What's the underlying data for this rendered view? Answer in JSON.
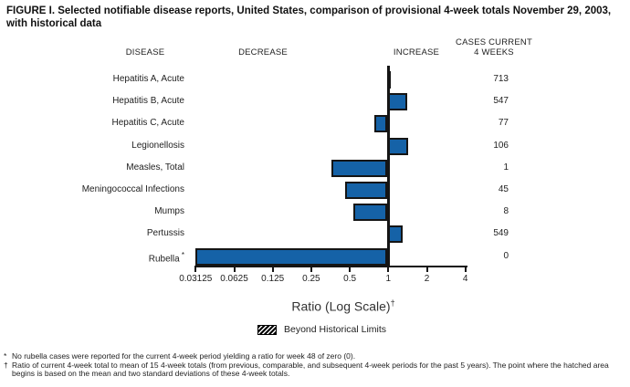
{
  "title": "FIGURE I. Selected notifiable disease reports, United States, comparison of provisional 4-week totals November 29, 2003, with historical data",
  "columns": {
    "disease": "DISEASE",
    "decrease": "DECREASE",
    "increase": "INCREASE",
    "cases_line1": "CASES CURRENT",
    "cases_line2": "4 WEEKS"
  },
  "chart_data": {
    "type": "bar",
    "orientation": "horizontal",
    "scale": "log2",
    "title": "FIGURE I. Selected notifiable disease reports, United States, comparison of provisional 4-week totals November 29, 2003, with historical data",
    "xlabel": "Ratio (Log Scale)",
    "xlabel_superscript": "†",
    "axis_ticks": [
      "0.03125",
      "0.0625",
      "0.125",
      "0.25",
      "0.5",
      "1",
      "2",
      "4"
    ],
    "axis_range": [
      0.03125,
      4
    ],
    "baseline_ratio": 1,
    "bar_color": "#1562a7",
    "rows": [
      {
        "disease": "Hepatitis A, Acute",
        "ratio": 1.05,
        "cases": "713",
        "beyond_limits": false
      },
      {
        "disease": "Hepatitis B, Acute",
        "ratio": 1.41,
        "cases": "547",
        "beyond_limits": false
      },
      {
        "disease": "Hepatitis C, Acute",
        "ratio": 0.78,
        "cases": "77",
        "beyond_limits": false
      },
      {
        "disease": "Legionellosis",
        "ratio": 1.44,
        "cases": "106",
        "beyond_limits": false
      },
      {
        "disease": "Measles, Total",
        "ratio": 0.36,
        "cases": "1",
        "beyond_limits": false
      },
      {
        "disease": "Meningococcal Infections",
        "ratio": 0.46,
        "cases": "45",
        "beyond_limits": false
      },
      {
        "disease": "Mumps",
        "ratio": 0.53,
        "cases": "8",
        "beyond_limits": false
      },
      {
        "disease": "Pertussis",
        "ratio": 1.29,
        "cases": "549",
        "beyond_limits": false
      },
      {
        "disease": "Rubella",
        "label_marker": "*",
        "ratio": 0,
        "cases": "0",
        "beyond_limits": false
      }
    ],
    "legend": {
      "swatch": "hatched-box",
      "label": "Beyond Historical Limits"
    }
  },
  "footnotes": [
    {
      "marker": "*",
      "text": "No rubella cases were reported for the current 4-week period yielding a ratio for week 48 of zero (0)."
    },
    {
      "marker": "†",
      "text": "Ratio of current 4-week total to mean of 15 4-week totals (from previous, comparable, and subsequent 4-week periods for the past 5 years). The point where the hatched area begins is based on the mean and two standard deviations of these 4-week totals."
    }
  ]
}
